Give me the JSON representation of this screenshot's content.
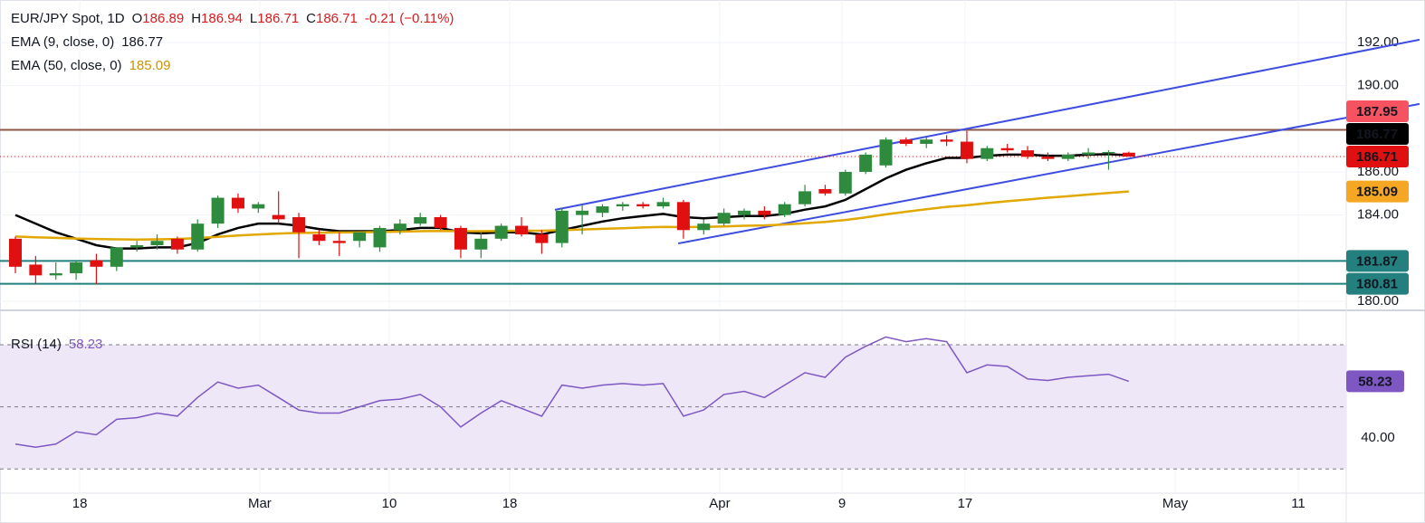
{
  "chart_data": [
    {
      "type": "candlestick",
      "title": "EUR/JPY Spot, 1D",
      "ohlc_legend": [
        {
          "key": "O",
          "value": "186.89"
        },
        {
          "key": "H",
          "value": "186.94"
        },
        {
          "key": "L",
          "value": "186.71"
        },
        {
          "key": "C",
          "value": "186.71"
        }
      ],
      "change": "-0.21 (−0.11%)",
      "up_color": "#2e8b3e",
      "down_color": "#e01010",
      "open": [
        182.9,
        181.7,
        181.2,
        181.3,
        181.9,
        181.6,
        182.5,
        182.6,
        182.9,
        182.4,
        183.6,
        184.8,
        184.3,
        184.0,
        183.9,
        183.1,
        182.8,
        182.8,
        182.5,
        183.3,
        183.6,
        183.9,
        183.4,
        182.4,
        182.9,
        183.5,
        183.1,
        182.7,
        184.0,
        184.1,
        184.4,
        184.5,
        184.4,
        184.6,
        183.3,
        183.6,
        184.0,
        184.2,
        184.0,
        184.5,
        185.2,
        185.0,
        186.0,
        186.3,
        187.5,
        187.3,
        187.5,
        187.4,
        186.6,
        187.1,
        187.0,
        186.7,
        186.6,
        186.8,
        186.9,
        186.89
      ],
      "high": [
        183.0,
        182.1,
        181.8,
        181.9,
        182.2,
        182.5,
        182.8,
        183.1,
        183.0,
        183.8,
        184.9,
        185.0,
        184.6,
        185.1,
        184.1,
        183.3,
        183.2,
        183.2,
        183.5,
        183.8,
        184.1,
        184.0,
        183.5,
        183.2,
        183.6,
        183.9,
        183.3,
        184.3,
        184.5,
        184.5,
        184.6,
        184.6,
        184.8,
        184.7,
        183.8,
        184.3,
        184.3,
        184.4,
        184.6,
        185.4,
        185.4,
        186.1,
        186.9,
        187.6,
        187.6,
        187.6,
        187.7,
        187.9,
        187.2,
        187.3,
        187.2,
        186.9,
        186.9,
        187.1,
        187.0,
        186.94
      ],
      "low": [
        181.3,
        180.8,
        181.0,
        181.0,
        180.8,
        181.4,
        182.3,
        182.4,
        182.2,
        182.3,
        183.4,
        184.1,
        184.1,
        183.6,
        182.0,
        182.6,
        182.1,
        182.5,
        182.3,
        183.1,
        183.5,
        183.3,
        182.0,
        182.0,
        182.8,
        183.0,
        182.2,
        182.5,
        183.1,
        183.9,
        184.2,
        184.3,
        184.3,
        182.9,
        183.1,
        183.5,
        183.8,
        183.8,
        183.9,
        184.4,
        184.9,
        184.9,
        185.9,
        186.2,
        187.2,
        187.1,
        187.2,
        186.4,
        186.5,
        186.9,
        186.6,
        186.5,
        186.5,
        186.6,
        186.1,
        186.71
      ],
      "close": [
        181.6,
        181.2,
        181.3,
        181.8,
        181.6,
        182.5,
        182.6,
        182.8,
        182.4,
        183.6,
        184.8,
        184.3,
        184.5,
        183.8,
        183.2,
        182.8,
        182.7,
        183.2,
        183.4,
        183.6,
        183.9,
        183.4,
        182.4,
        182.9,
        183.5,
        183.1,
        182.7,
        184.2,
        184.2,
        184.4,
        184.5,
        184.4,
        184.6,
        183.3,
        183.6,
        184.1,
        184.2,
        184.0,
        184.5,
        185.1,
        185.0,
        186.0,
        186.8,
        187.5,
        187.3,
        187.5,
        187.4,
        186.6,
        187.1,
        187.0,
        186.7,
        186.6,
        186.8,
        186.9,
        186.92,
        186.71
      ],
      "series": [
        {
          "name": "EMA (9, close, 0)",
          "value_label": "186.77",
          "color": "#000000",
          "values": [
            184.0,
            183.6,
            183.2,
            182.9,
            182.6,
            182.45,
            182.45,
            182.5,
            182.5,
            182.7,
            183.1,
            183.4,
            183.6,
            183.6,
            183.5,
            183.35,
            183.25,
            183.25,
            183.25,
            183.3,
            183.4,
            183.4,
            183.2,
            183.15,
            183.2,
            183.2,
            183.1,
            183.3,
            183.5,
            183.7,
            183.85,
            183.95,
            184.05,
            183.9,
            183.85,
            183.9,
            183.95,
            183.95,
            184.05,
            184.25,
            184.4,
            184.7,
            185.2,
            185.7,
            186.1,
            186.4,
            186.65,
            186.65,
            186.75,
            186.8,
            186.8,
            186.75,
            186.75,
            186.8,
            186.82,
            186.77
          ]
        },
        {
          "name": "EMA (50, close, 0)",
          "value_label": "185.09",
          "color": "#e0a800",
          "values": [
            183.0,
            182.97,
            182.94,
            182.91,
            182.89,
            182.87,
            182.86,
            182.87,
            182.89,
            182.93,
            182.99,
            183.05,
            183.1,
            183.14,
            183.17,
            183.18,
            183.19,
            183.2,
            183.21,
            183.23,
            183.25,
            183.26,
            183.25,
            183.25,
            183.26,
            183.27,
            183.27,
            183.3,
            183.33,
            183.36,
            183.39,
            183.42,
            183.45,
            183.44,
            183.45,
            183.47,
            183.5,
            183.52,
            183.56,
            183.62,
            183.68,
            183.77,
            183.89,
            184.03,
            184.15,
            184.27,
            184.38,
            184.45,
            184.55,
            184.64,
            184.72,
            184.8,
            184.87,
            184.95,
            185.02,
            185.09
          ]
        }
      ],
      "levels": [
        {
          "value": 187.95,
          "color": "#8d5a4a"
        },
        {
          "value": 181.87,
          "color": "#23807e"
        },
        {
          "value": 180.81,
          "color": "#23807e"
        }
      ],
      "trendlines": [
        {
          "color": "#3d4de0",
          "points": [
            [
              26.65,
              184.24
            ],
            [
              69.36,
              192.13
            ]
          ]
        },
        {
          "color": "#3d4de0",
          "points": [
            [
              32.74,
              182.68
            ],
            [
              69.36,
              189.15
            ]
          ]
        }
      ],
      "price_labels": [
        {
          "value": 187.95,
          "label": "187.95",
          "color": "#f7525f",
          "text_color": "#ffffff"
        },
        {
          "value": 186.77,
          "label": "186.77",
          "color": "#000000",
          "text_color": "#ffffff"
        },
        {
          "value": 186.71,
          "label": "186.71",
          "color": "#e01010",
          "text_color": "#ffffff"
        },
        {
          "value": 185.09,
          "label": "185.09",
          "color": "#f5a623",
          "text_color": "#131722"
        },
        {
          "value": 181.87,
          "label": "181.87",
          "color": "#23807e",
          "text_color": "#ffffff"
        },
        {
          "value": 180.81,
          "label": "180.81",
          "color": "#23807e",
          "text_color": "#ffffff"
        }
      ],
      "xlim": [
        -0.76,
        65.74
      ],
      "ylim": [
        179.62,
        193.97
      ],
      "yticks": [
        {
          "value": 192,
          "label": "192.00"
        },
        {
          "value": 190,
          "label": "190.00"
        },
        {
          "value": 186,
          "label": "186.00"
        },
        {
          "value": 184,
          "label": "184.00"
        },
        {
          "value": 180,
          "label": "180.00"
        }
      ],
      "grid": true
    },
    {
      "type": "line",
      "title": "RSI (14)",
      "value_label": "58.23",
      "color": "#7e57c2",
      "values": [
        38,
        37,
        38,
        42,
        41,
        46,
        46.5,
        48,
        47,
        53,
        58,
        56,
        57,
        53,
        49,
        48,
        48,
        50,
        52,
        52.5,
        54,
        50,
        43.5,
        48,
        52,
        49.5,
        47,
        57,
        56,
        57,
        57.5,
        57,
        57.5,
        47,
        49,
        54,
        55,
        53,
        57,
        61,
        59.5,
        66,
        69.5,
        72.5,
        71,
        72,
        71,
        61,
        63.5,
        63,
        59,
        58.5,
        59.5,
        60,
        60.5,
        58.23
      ],
      "levels": [
        70,
        50,
        30
      ],
      "band_color": "#ede7f8",
      "xlim": [
        -0.76,
        65.74
      ],
      "xticks": [
        {
          "value": 3.18,
          "label": "18"
        },
        {
          "value": 12.07,
          "label": "Mar"
        },
        {
          "value": 18.47,
          "label": "10"
        },
        {
          "value": 24.42,
          "label": "18"
        },
        {
          "value": 34.79,
          "label": "Apr"
        },
        {
          "value": 40.83,
          "label": "9"
        },
        {
          "value": 46.91,
          "label": "17"
        },
        {
          "value": 57.29,
          "label": "May"
        },
        {
          "value": 63.37,
          "label": "11"
        }
      ],
      "ylim": [
        22.2,
        80.5
      ],
      "yticks": [
        {
          "value": 40,
          "label": "40.00"
        }
      ],
      "grid": true
    }
  ]
}
